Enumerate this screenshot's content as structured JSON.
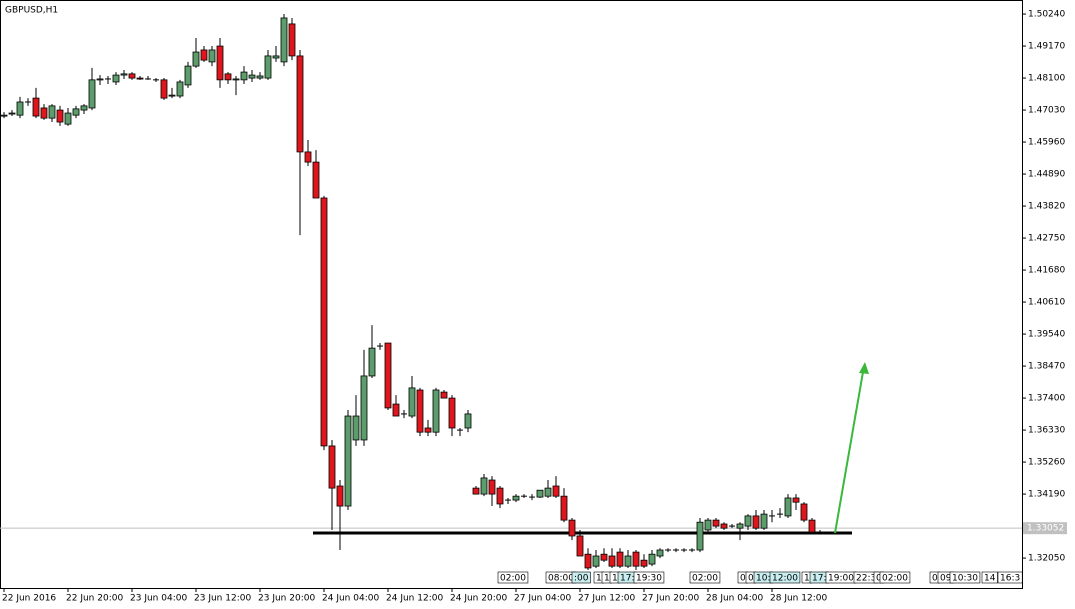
{
  "chart_data": {
    "type": "candlestick",
    "title": "GBPUSD,H1",
    "categories": [
      "22 Jun 2016",
      null,
      null,
      null,
      null,
      null,
      null,
      null,
      "22 Jun 20:00",
      null,
      null,
      null,
      null,
      null,
      null,
      null,
      "23 Jun 04:00",
      null,
      null,
      null,
      null,
      null,
      null,
      null,
      "23 Jun 12:00",
      null,
      null,
      null,
      null,
      null,
      null,
      null,
      "23 Jun 20:00",
      null,
      null,
      null,
      null,
      null,
      null,
      null,
      "24 Jun 04:00",
      null,
      null,
      null,
      null,
      null,
      null,
      null,
      "24 Jun 12:00",
      null,
      null,
      null,
      null,
      null,
      null,
      null,
      "24 Jun 20:00",
      null,
      null,
      null,
      null,
      null,
      null,
      null,
      "27 Jun 04:00",
      null,
      null,
      null,
      null,
      null,
      null,
      null,
      "27 Jun 12:00",
      null,
      null,
      null,
      null,
      null,
      null,
      null,
      "27 Jun 20:00",
      null,
      null,
      null,
      null,
      null,
      null,
      null,
      "28 Jun 04:00",
      null,
      null,
      null,
      null,
      null,
      null,
      null,
      "28 Jun 12:00",
      null,
      null,
      null,
      null,
      null,
      null
    ],
    "open": [
      1.4683,
      1.469,
      1.4686,
      1.473,
      1.4743,
      1.471,
      1.4676,
      1.4703,
      1.4656,
      1.4686,
      1.4703,
      1.471,
      1.4804,
      1.4807,
      1.4797,
      1.482,
      1.4824,
      1.481,
      1.4807,
      1.4804,
      1.4804,
      1.475,
      1.475,
      1.4787,
      1.485,
      1.4904,
      1.4864,
      1.4917,
      1.4824,
      1.4804,
      1.4804,
      1.481,
      1.481,
      1.481,
      1.4877,
      1.4864,
      1.4991,
      1.4884,
      1.4563,
      1.4529,
      1.4409,
      1.358,
      1.3446,
      1.3379,
      1.36,
      1.36,
      1.3814,
      1.3914,
      1.3924,
      1.372,
      1.3687,
      1.368,
      1.3767,
      1.364,
      1.3626,
      1.376,
      1.374,
      1.3633,
      1.364,
      1.3439,
      1.3419,
      1.3466,
      1.3439,
      1.3399,
      1.3399,
      1.3412,
      1.3409,
      1.3409,
      1.3412,
      1.3446,
      1.3412,
      1.3332,
      1.3279,
      1.3218,
      1.3178,
      1.3218,
      1.3212,
      1.3225,
      1.3178,
      1.3225,
      1.3198,
      1.3185,
      1.3212,
      1.3232,
      1.3232,
      1.3232,
      1.3232,
      1.3232,
      1.3299,
      1.3332,
      1.3319,
      1.3312,
      1.3305,
      1.3312,
      1.3346,
      1.3305,
      1.3346,
      1.3352,
      1.3346,
      1.3406,
      1.3386,
      1.3332,
      1.3292
    ],
    "high": [
      1.4696,
      1.4703,
      1.4747,
      1.4743,
      1.4777,
      1.4723,
      1.4723,
      1.4717,
      1.471,
      1.4717,
      1.4723,
      1.4844,
      1.482,
      1.4817,
      1.483,
      1.4837,
      1.483,
      1.4817,
      1.4817,
      1.481,
      1.481,
      1.4777,
      1.4804,
      1.4864,
      1.4944,
      1.4917,
      1.4917,
      1.4944,
      1.483,
      1.4817,
      1.485,
      1.4837,
      1.483,
      1.4904,
      1.4917,
      1.5024,
      1.5011,
      1.4904,
      1.4603,
      1.4569,
      1.4416,
      1.36,
      1.3466,
      1.37,
      1.375,
      1.3901,
      1.3984,
      1.3924,
      1.3924,
      1.375,
      1.37,
      1.3814,
      1.3774,
      1.3667,
      1.3774,
      1.3767,
      1.375,
      1.364,
      1.37,
      1.3446,
      1.3486,
      1.3479,
      1.3446,
      1.3406,
      1.3419,
      1.3419,
      1.3419,
      1.3432,
      1.3466,
      1.3479,
      1.3439,
      1.3339,
      1.3299,
      1.3238,
      1.3232,
      1.3238,
      1.3238,
      1.3238,
      1.3232,
      1.3232,
      1.3218,
      1.3232,
      1.3238,
      1.3238,
      1.3238,
      1.3238,
      1.3238,
      1.3339,
      1.3339,
      1.3339,
      1.3325,
      1.3319,
      1.3325,
      1.3352,
      1.3366,
      1.3366,
      1.3366,
      1.3372,
      1.3419,
      1.3419,
      1.3392,
      1.3339,
      1.3299
    ],
    "low": [
      1.4676,
      1.4683,
      1.4676,
      1.4717,
      1.4676,
      1.467,
      1.4663,
      1.465,
      1.465,
      1.4676,
      1.469,
      1.4703,
      1.4787,
      1.479,
      1.4787,
      1.4807,
      1.4804,
      1.4804,
      1.4804,
      1.4797,
      1.4737,
      1.4743,
      1.4743,
      1.4777,
      1.4844,
      1.4864,
      1.485,
      1.4777,
      1.479,
      1.4753,
      1.479,
      1.4797,
      1.4804,
      1.4804,
      1.4864,
      1.485,
      1.487,
      1.4285,
      1.4516,
      1.4409,
      1.3566,
      1.3299,
      1.3232,
      1.3366,
      1.358,
      1.358,
      1.3807,
      1.3901,
      1.37,
      1.368,
      1.3673,
      1.3673,
      1.3613,
      1.3613,
      1.3613,
      1.374,
      1.3613,
      1.3613,
      1.3626,
      1.3419,
      1.3412,
      1.3379,
      1.3372,
      1.3386,
      1.3392,
      1.3406,
      1.3399,
      1.3406,
      1.3406,
      1.3406,
      1.3325,
      1.3265,
      1.3212,
      1.3165,
      1.3172,
      1.3192,
      1.3172,
      1.3172,
      1.3172,
      1.3165,
      1.3172,
      1.3178,
      1.3205,
      1.3225,
      1.3225,
      1.3225,
      1.3225,
      1.3225,
      1.3292,
      1.3305,
      1.3299,
      1.3305,
      1.3265,
      1.3299,
      1.3299,
      1.3299,
      1.3325,
      1.3339,
      1.3339,
      1.3366,
      1.3325,
      1.3285,
      1.3285
    ],
    "close": [
      1.4686,
      1.4693,
      1.473,
      1.473,
      1.4683,
      1.4676,
      1.4717,
      1.4663,
      1.4693,
      1.4707,
      1.4717,
      1.4804,
      1.4807,
      1.4807,
      1.482,
      1.4824,
      1.481,
      1.4807,
      1.4807,
      1.4804,
      1.4743,
      1.4753,
      1.4797,
      1.485,
      1.4897,
      1.487,
      1.4904,
      1.4804,
      1.4804,
      1.4807,
      1.483,
      1.482,
      1.4817,
      1.4884,
      1.4884,
      1.5011,
      1.4884,
      1.4563,
      1.4529,
      1.4409,
      1.358,
      1.3439,
      1.3379,
      1.368,
      1.368,
      1.3814,
      1.3907,
      1.3914,
      1.3707,
      1.368,
      1.3687,
      1.3774,
      1.3626,
      1.3626,
      1.3767,
      1.374,
      1.364,
      1.3633,
      1.3687,
      1.3419,
      1.3473,
      1.3419,
      1.3386,
      1.3399,
      1.3412,
      1.3412,
      1.3409,
      1.3432,
      1.3439,
      1.3412,
      1.3332,
      1.3279,
      1.3212,
      1.3172,
      1.3212,
      1.3198,
      1.3178,
      1.3178,
      1.3212,
      1.3178,
      1.3178,
      1.3218,
      1.3232,
      1.3232,
      1.3232,
      1.3232,
      1.3232,
      1.3325,
      1.3332,
      1.3312,
      1.3305,
      1.3312,
      1.3319,
      1.3346,
      1.3305,
      1.3352,
      1.3346,
      1.3352,
      1.3406,
      1.3392,
      1.3332,
      1.3292,
      1.3292
    ],
    "bull_color": "#5b9e6b",
    "bear_color": "#e0161c",
    "ylim": [
      1.3105,
      1.5071
    ],
    "yticks": [
      {
        "value": 1.5024,
        "label": "1.50240"
      },
      {
        "value": 1.4917,
        "label": "1.49170"
      },
      {
        "value": 1.481,
        "label": "1.48100"
      },
      {
        "value": 1.4703,
        "label": "1.47030"
      },
      {
        "value": 1.4596,
        "label": "1.45960"
      },
      {
        "value": 1.4489,
        "label": "1.44890"
      },
      {
        "value": 1.4382,
        "label": "1.43820"
      },
      {
        "value": 1.4275,
        "label": "1.42750"
      },
      {
        "value": 1.4168,
        "label": "1.41680"
      },
      {
        "value": 1.4061,
        "label": "1.40610"
      },
      {
        "value": 1.3954,
        "label": "1.39540"
      },
      {
        "value": 1.3847,
        "label": "1.38470"
      },
      {
        "value": 1.374,
        "label": "1.37400"
      },
      {
        "value": 1.3633,
        "label": "1.36330"
      },
      {
        "value": 1.3526,
        "label": "1.35260"
      },
      {
        "value": 1.3419,
        "label": "1.34190"
      },
      {
        "value": 1.3205,
        "label": "1.32050"
      }
    ],
    "current_price": {
      "value": 1.3305,
      "label": "1.33052"
    },
    "support_level": 1.3289,
    "event_labels": [
      "02:00",
      "08:00",
      ":00",
      "1",
      "1",
      "1",
      "17:",
      "19:30",
      "02:00",
      "0",
      "0",
      "10:",
      "12:00",
      "1",
      "17:",
      "19:00",
      "22:3",
      "0",
      "02:00",
      "0",
      "09",
      "10:30",
      "14",
      "16:3"
    ]
  }
}
